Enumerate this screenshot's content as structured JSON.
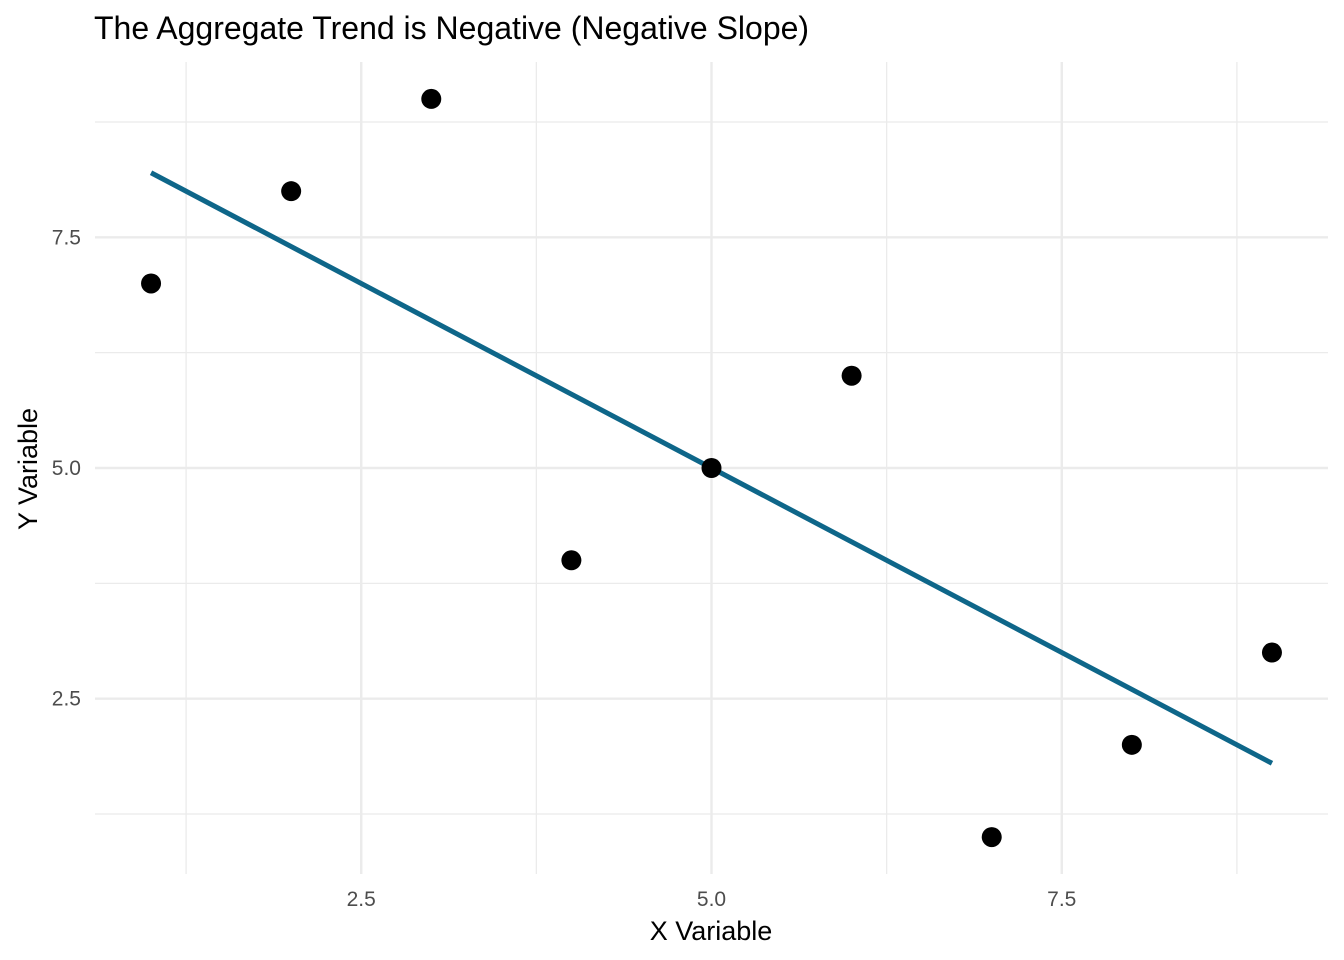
{
  "chart_data": {
    "type": "scatter",
    "title": "The Aggregate Trend is Negative (Negative Slope)",
    "xlabel": "X Variable",
    "ylabel": "Y Variable",
    "xlim": [
      0.6,
      9.4
    ],
    "ylim": [
      0.6,
      9.4
    ],
    "x_ticks": [
      2.5,
      5.0,
      7.5
    ],
    "x_tick_labels": [
      "2.5",
      "5.0",
      "7.5"
    ],
    "y_ticks": [
      2.5,
      5.0,
      7.5
    ],
    "y_tick_labels": [
      "2.5",
      "5.0",
      "7.5"
    ],
    "x_minor_ticks": [
      1.25,
      3.75,
      6.25,
      8.75
    ],
    "y_minor_ticks": [
      1.25,
      3.75,
      6.25,
      8.75
    ],
    "grid": true,
    "points": [
      {
        "x": 1,
        "y": 7
      },
      {
        "x": 2,
        "y": 8
      },
      {
        "x": 3,
        "y": 9
      },
      {
        "x": 4,
        "y": 4
      },
      {
        "x": 5,
        "y": 5
      },
      {
        "x": 6,
        "y": 6
      },
      {
        "x": 7,
        "y": 1
      },
      {
        "x": 8,
        "y": 2
      },
      {
        "x": 9,
        "y": 3
      }
    ],
    "point_color": "#000000",
    "trend_line": {
      "type": "linear",
      "x": [
        1,
        9
      ],
      "y": [
        8.2,
        1.8
      ],
      "color": "#0e6689"
    }
  }
}
